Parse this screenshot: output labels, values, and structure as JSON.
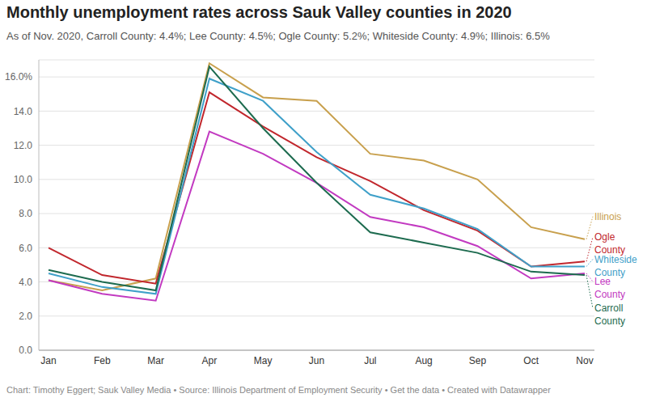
{
  "chart_data": {
    "type": "line",
    "title": "Monthly unemployment rates across Sauk Valley counties in 2020",
    "subtitle": "As of Nov. 2020, Carroll County: 4.4%; Lee County: 4.5%; Ogle County: 5.2%; Whiteside County: 4.9%; Illinois: 6.5%",
    "footer": "Chart: Timothy Eggert; Sauk Valley Media • Source: Illinois Department of Employment Security • Get the data • Created with Datawrapper",
    "categories": [
      "Jan",
      "Feb",
      "Mar",
      "Apr",
      "May",
      "Jun",
      "Jul",
      "Aug",
      "Sep",
      "Oct",
      "Nov"
    ],
    "series": [
      {
        "name": "Illinois",
        "color": "#c8a04d",
        "values": [
          4.1,
          3.5,
          4.2,
          16.8,
          14.8,
          14.6,
          11.5,
          11.1,
          10.0,
          7.2,
          6.5
        ]
      },
      {
        "name": "Ogle County",
        "color": "#c1272d",
        "values": [
          6.0,
          4.4,
          3.9,
          15.1,
          13.1,
          11.3,
          9.9,
          8.2,
          7.0,
          4.9,
          5.2
        ]
      },
      {
        "name": "Whiteside County",
        "color": "#3fa0c9",
        "values": [
          4.5,
          3.7,
          3.3,
          15.9,
          14.6,
          11.6,
          9.1,
          8.3,
          7.1,
          4.9,
          4.9
        ]
      },
      {
        "name": "Lee County",
        "color": "#c23ac1",
        "values": [
          4.1,
          3.3,
          2.9,
          12.8,
          11.5,
          9.8,
          7.8,
          7.2,
          6.1,
          4.2,
          4.5
        ]
      },
      {
        "name": "Carroll County",
        "color": "#1d6b4f",
        "values": [
          4.7,
          4.0,
          3.5,
          16.6,
          13.0,
          9.8,
          6.9,
          6.3,
          5.7,
          4.6,
          4.4
        ]
      }
    ],
    "ylim": [
      0,
      17
    ],
    "yticks": [
      {
        "value": 0,
        "label": "0.0"
      },
      {
        "value": 2,
        "label": "2.0"
      },
      {
        "value": 4,
        "label": "4.0"
      },
      {
        "value": 6,
        "label": "6.0"
      },
      {
        "value": 8,
        "label": "8.0"
      },
      {
        "value": 10,
        "label": "10.0"
      },
      {
        "value": 12,
        "label": "12.0"
      },
      {
        "value": 14,
        "label": "14.0"
      },
      {
        "value": 16,
        "label": "16.0%"
      }
    ],
    "grid": true
  }
}
